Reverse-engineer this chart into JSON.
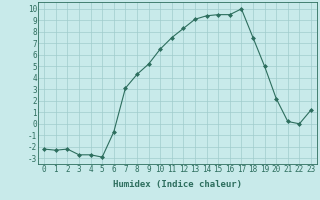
{
  "xlabel": "Humidex (Indice chaleur)",
  "ylabel": "",
  "x": [
    0,
    1,
    2,
    3,
    4,
    5,
    6,
    7,
    8,
    9,
    10,
    11,
    12,
    13,
    14,
    15,
    16,
    17,
    18,
    19,
    20,
    21,
    22,
    23
  ],
  "y": [
    -2.2,
    -2.3,
    -2.2,
    -2.7,
    -2.7,
    -2.9,
    -0.7,
    3.1,
    4.3,
    5.2,
    6.5,
    7.5,
    8.3,
    9.1,
    9.4,
    9.5,
    9.5,
    10.0,
    7.5,
    5.0,
    2.2,
    0.2,
    0.0,
    1.2
  ],
  "line_color": "#2d6e5e",
  "bg_color": "#c8eaea",
  "grid_color": "#a0cccc",
  "ylim": [
    -3.5,
    10.6
  ],
  "yticks": [
    -3,
    -2,
    -1,
    0,
    1,
    2,
    3,
    4,
    5,
    6,
    7,
    8,
    9,
    10
  ],
  "xticks": [
    0,
    1,
    2,
    3,
    4,
    5,
    6,
    7,
    8,
    9,
    10,
    11,
    12,
    13,
    14,
    15,
    16,
    17,
    18,
    19,
    20,
    21,
    22,
    23
  ],
  "xlabel_fontsize": 6.5,
  "tick_fontsize": 5.5,
  "marker": "D",
  "marker_size": 2.0
}
